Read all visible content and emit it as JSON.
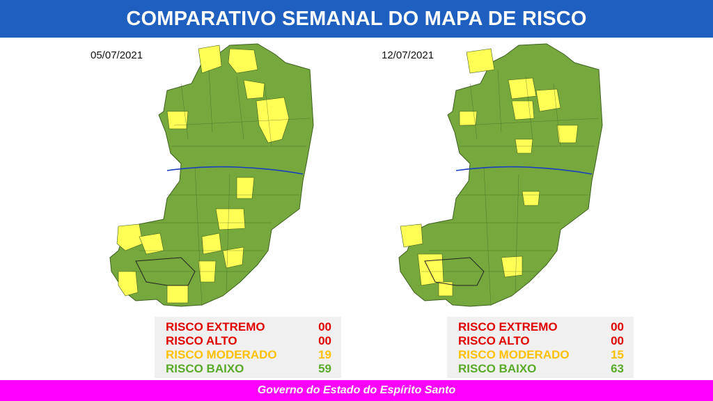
{
  "header": {
    "title": "COMPARATIVO SEMANAL DO MAPA DE RISCO"
  },
  "colors": {
    "header_bg": "#1f5fbf",
    "footer_bg": "#ff00ff",
    "risk_extremo": "#e00000",
    "risk_alto": "#e00000",
    "risk_moderado": "#ffd700",
    "risk_baixo": "#6aaa3a",
    "map_green": "#76a83d",
    "map_yellow": "#ffff55",
    "river": "#1a3fbf"
  },
  "maps": [
    {
      "date": "05/07/2021",
      "legend": [
        {
          "label": "RISCO EXTREMO",
          "value": "00",
          "color": "#e00000"
        },
        {
          "label": "RISCO ALTO",
          "value": "00",
          "color": "#e00000"
        },
        {
          "label": "RISCO MODERADO",
          "value": "19",
          "color": "#ffc000"
        },
        {
          "label": "RISCO BAIXO",
          "value": "59",
          "color": "#5aaa2a"
        }
      ]
    },
    {
      "date": "12/07/2021",
      "legend": [
        {
          "label": "RISCO EXTREMO",
          "value": "00",
          "color": "#e00000"
        },
        {
          "label": "RISCO ALTO",
          "value": "00",
          "color": "#e00000"
        },
        {
          "label": "RISCO MODERADO",
          "value": "15",
          "color": "#ffc000"
        },
        {
          "label": "RISCO BAIXO",
          "value": "63",
          "color": "#5aaa2a"
        }
      ]
    }
  ],
  "footer": {
    "text": "Governo do Estado do Espírito Santo"
  }
}
